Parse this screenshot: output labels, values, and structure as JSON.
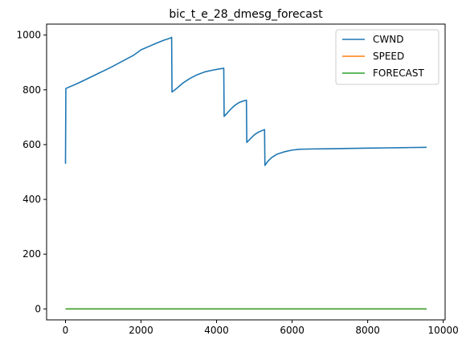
{
  "chart_data": {
    "type": "line",
    "title": "bic_t_e_28_dmesg_forecast",
    "xlabel": "",
    "ylabel": "",
    "xlim": [
      -500,
      10050
    ],
    "ylim": [
      -40,
      1040
    ],
    "xticks": [
      0,
      2000,
      4000,
      6000,
      8000,
      10000
    ],
    "yticks": [
      0,
      200,
      400,
      600,
      800,
      1000
    ],
    "grid": false,
    "legend_position": "top-right",
    "series": [
      {
        "name": "CWND",
        "color": "#1f77b4",
        "points": [
          [
            0,
            530
          ],
          [
            10,
            805
          ],
          [
            300,
            822
          ],
          [
            600,
            842
          ],
          [
            900,
            862
          ],
          [
            1200,
            882
          ],
          [
            1500,
            904
          ],
          [
            1800,
            926
          ],
          [
            2000,
            946
          ],
          [
            2200,
            958
          ],
          [
            2400,
            970
          ],
          [
            2600,
            981
          ],
          [
            2800,
            990
          ],
          [
            2810,
            992
          ],
          [
            2820,
            792
          ],
          [
            2950,
            806
          ],
          [
            3100,
            824
          ],
          [
            3300,
            842
          ],
          [
            3500,
            856
          ],
          [
            3700,
            866
          ],
          [
            3900,
            872
          ],
          [
            4100,
            877
          ],
          [
            4190,
            879
          ],
          [
            4200,
            703
          ],
          [
            4300,
            718
          ],
          [
            4400,
            733
          ],
          [
            4500,
            745
          ],
          [
            4600,
            754
          ],
          [
            4700,
            759
          ],
          [
            4790,
            762
          ],
          [
            4800,
            608
          ],
          [
            4900,
            622
          ],
          [
            5000,
            636
          ],
          [
            5100,
            645
          ],
          [
            5200,
            651
          ],
          [
            5270,
            655
          ],
          [
            5280,
            524
          ],
          [
            5350,
            538
          ],
          [
            5450,
            552
          ],
          [
            5600,
            565
          ],
          [
            5800,
            574
          ],
          [
            6000,
            580
          ],
          [
            6200,
            583
          ],
          [
            6500,
            584
          ],
          [
            7000,
            585
          ],
          [
            7500,
            586
          ],
          [
            8000,
            587
          ],
          [
            8500,
            588
          ],
          [
            9000,
            589
          ],
          [
            9560,
            590
          ]
        ]
      },
      {
        "name": "SPEED",
        "color": "#ff7f0e",
        "points": [
          [
            0,
            0
          ],
          [
            9560,
            0
          ]
        ]
      },
      {
        "name": "FORECAST",
        "color": "#2ca02c",
        "points": [
          [
            0,
            0
          ],
          [
            9560,
            0
          ]
        ]
      }
    ]
  }
}
